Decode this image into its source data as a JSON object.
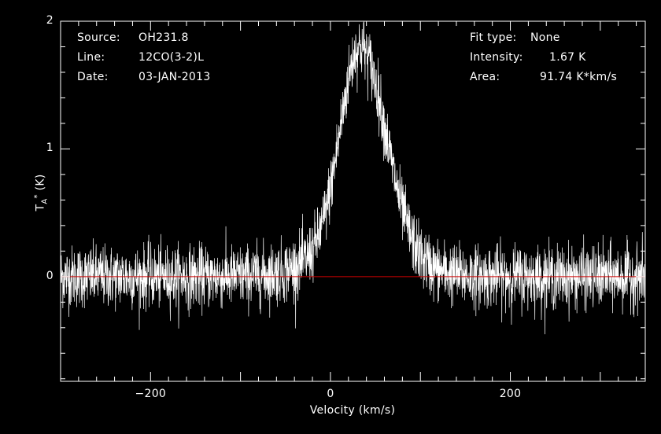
{
  "chart_data": {
    "type": "line",
    "info_left": [
      {
        "key": "Source:",
        "value": "OH231.8"
      },
      {
        "key": "Line:",
        "value": "12CO(3-2)L"
      },
      {
        "key": "Date:",
        "value": "03-JAN-2013"
      }
    ],
    "info_right": [
      {
        "key": "Fit type:",
        "value": "None"
      },
      {
        "key": "Intensity:",
        "value": "1.67 K"
      },
      {
        "key": "Area:",
        "value": "91.74 K*km/s"
      }
    ],
    "xlabel": "Velocity (km/s)",
    "ylabel": "T_A^* (K)",
    "xlim": [
      -300,
      350
    ],
    "ylim": [
      -0.82,
      2.0
    ],
    "xticks": [
      -200,
      0,
      200
    ],
    "yticks": [
      0,
      1,
      2
    ],
    "baseline": 0,
    "noise_rms": 0.12,
    "profile": {
      "shape": "asymmetric peak",
      "peak_velocity": 33,
      "peak_intensity": 1.55,
      "max_intensity": 1.87,
      "core_width_blue": 22,
      "core_width_red": 28,
      "wing_blue": {
        "amplitude": 0.25,
        "width": 45
      },
      "wing_red": {
        "amplitude": 0.25,
        "width": 45
      }
    },
    "colors": {
      "spectrum": "#ffffff",
      "baseline": "#d00000",
      "frame": "#ffffff",
      "background": "#000000"
    }
  }
}
